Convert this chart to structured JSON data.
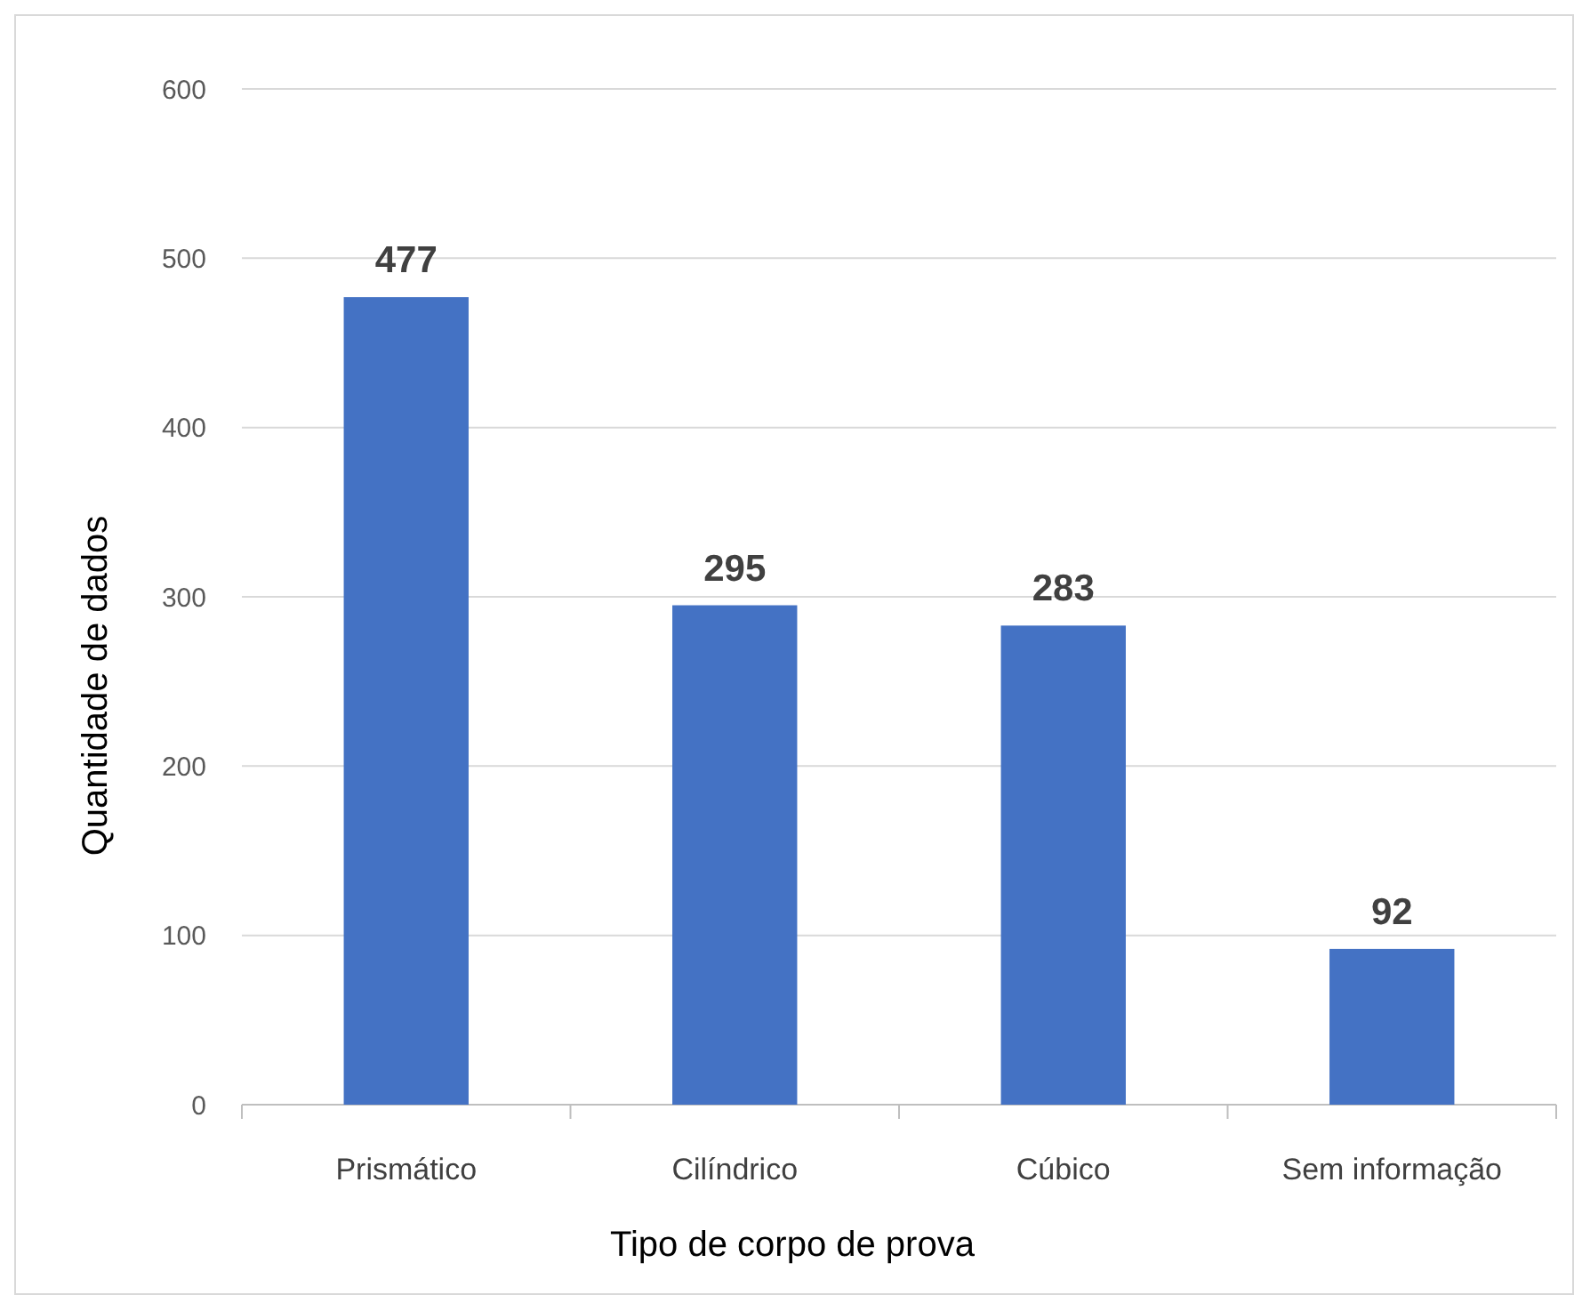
{
  "chart_data": {
    "type": "bar",
    "xlabel": "Tipo de corpo de prova",
    "ylabel": "Quantidade de dados",
    "categories": [
      "Prismático",
      "Cilíndrico",
      "Cúbico",
      "Sem informação"
    ],
    "values": [
      477,
      295,
      283,
      92
    ],
    "color": "#4472c4",
    "ylim": [
      0,
      600
    ],
    "yticks": [
      0,
      100,
      200,
      300,
      400,
      500,
      600
    ],
    "grid": "y",
    "data_labels": true
  }
}
